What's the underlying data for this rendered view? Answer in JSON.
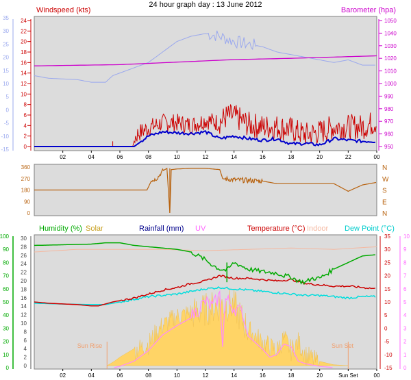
{
  "title": "24 hour graph day : 13 June 2012",
  "colors": {
    "panel_bg": "#dcdcdc",
    "frame": "#808080",
    "wind": "#cc0000",
    "wind_avg": "#0000cc",
    "baro": "#cc00cc",
    "dir": "#b8620e",
    "humidity": "#00aa00",
    "solar": "#ffd466",
    "rain": "#00008b",
    "uv": "#ff88ff",
    "temp": "#cc0000",
    "indoor": "#f5b8a0",
    "dew": "#00dddd",
    "speed_axis": "#9aa8ee",
    "sun_marker": "#f0a070"
  },
  "chart_data": [
    {
      "type": "line",
      "panel": "wind-barometer",
      "left_label": "Windspeed (kts)",
      "right_label": "Barometer (hpa)",
      "left_red_ticks": [
        "24",
        "22",
        "20",
        "18",
        "16",
        "14",
        "12",
        "10",
        "8",
        "6",
        "4",
        "2",
        "0"
      ],
      "left_blue_ticks": [
        "35",
        "30",
        "25",
        "20",
        "15",
        "10",
        "5",
        "0",
        "-5",
        "-10",
        "-15"
      ],
      "right_ticks": [
        "1050",
        "1040",
        "1030",
        "1020",
        "1010",
        "1000",
        "990",
        "980",
        "970",
        "960",
        "950"
      ],
      "x_ticks": [
        "02",
        "04",
        "06",
        "08",
        "10",
        "12",
        "14",
        "16",
        "18",
        "20",
        "22",
        "00"
      ],
      "x_hours": [
        2,
        4,
        6,
        8,
        10,
        12,
        14,
        16,
        18,
        20,
        22,
        24
      ],
      "gust_shape_kts": [
        [
          0,
          0
        ],
        [
          6.9,
          0
        ],
        [
          7.0,
          1
        ],
        [
          7.3,
          2
        ],
        [
          8.0,
          3
        ],
        [
          9.0,
          4
        ],
        [
          10.0,
          4
        ],
        [
          11.0,
          3.5
        ],
        [
          12.0,
          4.5
        ],
        [
          13.0,
          4
        ],
        [
          13.5,
          5
        ],
        [
          14.0,
          5
        ],
        [
          15.0,
          3.5
        ],
        [
          16.0,
          3
        ],
        [
          17.0,
          3
        ],
        [
          18.0,
          2.5
        ],
        [
          19.0,
          1.5
        ],
        [
          20.0,
          2
        ],
        [
          21.0,
          3
        ],
        [
          22.0,
          3
        ],
        [
          23.0,
          3
        ],
        [
          24.0,
          4
        ]
      ],
      "series": [
        {
          "name": "Windspeed",
          "values_kts": [
            [
              0,
              0
            ],
            [
              7,
              0
            ],
            [
              8,
              2
            ],
            [
              9,
              2.8
            ],
            [
              10,
              2.6
            ],
            [
              11,
              2.5
            ],
            [
              12,
              2.8
            ],
            [
              13,
              1.5
            ],
            [
              14,
              2
            ],
            [
              15,
              1.5
            ],
            [
              16,
              1.2
            ],
            [
              17,
              1.5
            ],
            [
              18,
              0.5
            ],
            [
              19,
              0.6
            ],
            [
              20,
              0.3
            ],
            [
              21,
              1.5
            ],
            [
              22,
              1.2
            ],
            [
              23,
              1
            ],
            [
              24,
              1
            ]
          ]
        },
        {
          "name": "Barometer",
          "values_hpa": [
            [
              0,
              1014
            ],
            [
              6,
              1015
            ],
            [
              10,
              1017
            ],
            [
              14,
              1019
            ],
            [
              18,
              1020
            ],
            [
              21,
              1021
            ],
            [
              24,
              1022
            ]
          ]
        },
        {
          "name": "Temperature",
          "values_c": [
            [
              0,
              13
            ],
            [
              1,
              12
            ],
            [
              3,
              11.5
            ],
            [
              4,
              10.5
            ],
            [
              5,
              10.5
            ],
            [
              5.5,
              13
            ],
            [
              8,
              18
            ],
            [
              9,
              22
            ],
            [
              10,
              26
            ],
            [
              11,
              28
            ],
            [
              12,
              29
            ],
            [
              13,
              28
            ],
            [
              14,
              26
            ],
            [
              15,
              25
            ],
            [
              16,
              24
            ],
            [
              17,
              22
            ],
            [
              18,
              21
            ],
            [
              19,
              20
            ],
            [
              20,
              19
            ],
            [
              21,
              18
            ],
            [
              22,
              19
            ],
            [
              23,
              17
            ],
            [
              24,
              17
            ]
          ]
        }
      ]
    },
    {
      "type": "line",
      "panel": "wind-direction",
      "left_ticks": [
        "360",
        "270",
        "180",
        "90",
        "0"
      ],
      "right_labels": [
        "N",
        "W",
        "S",
        "E",
        "N"
      ],
      "series": [
        {
          "name": "Wind Direction",
          "values_deg": [
            [
              0,
              180
            ],
            [
              7.9,
              180
            ],
            [
              8.2,
              250
            ],
            [
              8.6,
              270
            ],
            [
              9,
              330
            ],
            [
              9.3,
              350
            ],
            [
              9.5,
              0
            ],
            [
              9.6,
              340
            ],
            [
              10,
              345
            ],
            [
              11,
              350
            ],
            [
              12,
              350
            ],
            [
              13,
              340
            ],
            [
              13.2,
              270
            ],
            [
              14,
              260
            ],
            [
              15,
              255
            ],
            [
              16,
              250
            ],
            [
              17,
              230
            ],
            [
              18,
              230
            ],
            [
              20,
              230
            ],
            [
              21,
              230
            ],
            [
              22,
              170
            ],
            [
              23,
              220
            ],
            [
              24,
              240
            ]
          ]
        }
      ]
    },
    {
      "type": "line",
      "panel": "humidity-temperature",
      "labels": [
        "Humidity (%)",
        "Solar",
        "Rainfall (mm)",
        "UV",
        "Temperature (°C)",
        "Indoor",
        "Dew Point (°C)"
      ],
      "left_humidity_ticks": [
        "100",
        "90",
        "80",
        "70",
        "60",
        "50",
        "40",
        "30",
        "20",
        "10",
        "0"
      ],
      "left_solar_ticks": [
        "30",
        "28",
        "26",
        "24",
        "22",
        "20",
        "18",
        "16",
        "14",
        "12",
        "10",
        "8",
        "6",
        "4",
        "2",
        "0"
      ],
      "right_temp_ticks": [
        "35",
        "30",
        "25",
        "20",
        "15",
        "10",
        "5",
        "0",
        "-5",
        "-10",
        "-15"
      ],
      "right_uv_ticks": [
        "10",
        "9",
        "8",
        "7",
        "6",
        "5",
        "4",
        "3",
        "2",
        "1",
        "0"
      ],
      "x_ticks": [
        "02",
        "04",
        "06",
        "08",
        "10",
        "12",
        "14",
        "16",
        "18",
        "20",
        "Sun Set",
        "00"
      ],
      "x_hours": [
        2,
        4,
        6,
        8,
        10,
        12,
        14,
        16,
        18,
        20,
        22,
        24
      ],
      "annotations": [
        "Sun Rise",
        "Sun Set"
      ],
      "sunrise_hour": 5.1,
      "sunset_hour": 22.0,
      "series": [
        {
          "name": "Humidity",
          "values_pct": [
            [
              0,
              93
            ],
            [
              4,
              94
            ],
            [
              5,
              95
            ],
            [
              6,
              95
            ],
            [
              7,
              93
            ],
            [
              8,
              92
            ],
            [
              9,
              91
            ],
            [
              10,
              90
            ],
            [
              11,
              88
            ],
            [
              11.5,
              85
            ],
            [
              12,
              82
            ],
            [
              12.5,
              78
            ],
            [
              13,
              75
            ],
            [
              13.5,
              74
            ],
            [
              14,
              80
            ],
            [
              15,
              75
            ],
            [
              16,
              73
            ],
            [
              17,
              72
            ],
            [
              17.5,
              70
            ],
            [
              18,
              69
            ],
            [
              18.5,
              66
            ],
            [
              19,
              65
            ],
            [
              19.5,
              68
            ],
            [
              20,
              68
            ],
            [
              21,
              75
            ],
            [
              22,
              80
            ],
            [
              23,
              85
            ],
            [
              24,
              86
            ]
          ]
        },
        {
          "name": "Solar",
          "values": [
            [
              5.1,
              0
            ],
            [
              5.6,
              1
            ],
            [
              6,
              2
            ],
            [
              7,
              4
            ],
            [
              8,
              5.5
            ],
            [
              8.5,
              8
            ],
            [
              9,
              10
            ],
            [
              10,
              12
            ],
            [
              11,
              13
            ],
            [
              12,
              14
            ],
            [
              13,
              15
            ],
            [
              14,
              15
            ],
            [
              14.5,
              12
            ],
            [
              15,
              9
            ],
            [
              16,
              6
            ],
            [
              17,
              4
            ],
            [
              17.5,
              7
            ],
            [
              18,
              4
            ],
            [
              18.5,
              6
            ],
            [
              19,
              3
            ],
            [
              20,
              1
            ],
            [
              21,
              0.2
            ],
            [
              22,
              0
            ]
          ]
        },
        {
          "name": "UV",
          "values": [
            [
              5.6,
              0
            ],
            [
              6,
              0.1
            ],
            [
              7,
              0.5
            ],
            [
              8,
              1.3
            ],
            [
              9,
              2.5
            ],
            [
              10,
              3.2
            ],
            [
              11,
              3.8
            ],
            [
              11.5,
              4.5
            ],
            [
              12,
              5
            ],
            [
              12.5,
              4.6
            ],
            [
              13,
              5.5
            ],
            [
              13.2,
              2
            ],
            [
              13.4,
              5.2
            ],
            [
              14,
              4.6
            ],
            [
              14.5,
              4.2
            ],
            [
              15,
              2.4
            ],
            [
              16,
              1.4
            ],
            [
              16.5,
              0.8
            ],
            [
              17,
              1
            ],
            [
              17.5,
              1.8
            ],
            [
              18,
              1.6
            ],
            [
              18.5,
              0.5
            ],
            [
              19,
              0.3
            ],
            [
              20,
              0.1
            ],
            [
              21,
              0
            ]
          ]
        },
        {
          "name": "Indoor",
          "values_c": [
            [
              0,
              29
            ],
            [
              3,
              30
            ],
            [
              6,
              30
            ],
            [
              9,
              30
            ],
            [
              12,
              29.5
            ],
            [
              15,
              30
            ],
            [
              18,
              30.5
            ],
            [
              21,
              30
            ],
            [
              24,
              31
            ]
          ]
        },
        {
          "name": "Dew Point",
          "values_c": [
            [
              0,
              9.5
            ],
            [
              2,
              9.2
            ],
            [
              4,
              9
            ],
            [
              5,
              9
            ],
            [
              6,
              10
            ],
            [
              7,
              11
            ],
            [
              8,
              12
            ],
            [
              9,
              12.5
            ],
            [
              10,
              13
            ],
            [
              11,
              14
            ],
            [
              12,
              15
            ],
            [
              13,
              15.5
            ],
            [
              14,
              15
            ],
            [
              15,
              14.5
            ],
            [
              16,
              14
            ],
            [
              17,
              13.5
            ],
            [
              18,
              13
            ],
            [
              19,
              12.5
            ],
            [
              20,
              12.5
            ],
            [
              21,
              12
            ],
            [
              22,
              11.5
            ],
            [
              23,
              12
            ],
            [
              24,
              12
            ]
          ]
        },
        {
          "name": "Temperature",
          "values_c": [
            [
              0,
              10
            ],
            [
              1,
              9.5
            ],
            [
              3,
              9
            ],
            [
              4,
              8.5
            ],
            [
              4.5,
              8.5
            ],
            [
              5.5,
              10
            ],
            [
              7,
              11.5
            ],
            [
              8,
              13
            ],
            [
              9,
              14.5
            ],
            [
              10,
              15.5
            ],
            [
              11,
              17
            ],
            [
              12,
              18
            ],
            [
              13,
              20
            ],
            [
              14,
              19
            ],
            [
              15,
              19
            ],
            [
              16,
              18.5
            ],
            [
              17,
              18
            ],
            [
              18,
              18.5
            ],
            [
              19,
              17
            ],
            [
              20,
              16.5
            ],
            [
              21,
              16
            ],
            [
              22,
              16
            ],
            [
              23,
              15.5
            ],
            [
              24,
              15
            ]
          ]
        }
      ]
    }
  ]
}
